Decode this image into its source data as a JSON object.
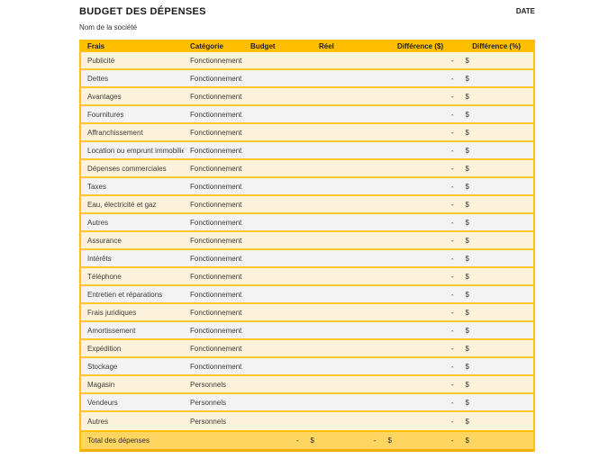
{
  "header": {
    "title": "BUDGET DES DÉPENSES",
    "date_label": "DATE",
    "company_name": "Nom de la société"
  },
  "table": {
    "columns": {
      "frais": "Frais",
      "categorie": "Catégorie",
      "budget": "Budget",
      "reel": "Réel",
      "difference_dollar": "Différence ($)",
      "difference_percent": "Différence (%)"
    },
    "zero_display": {
      "dash": "-",
      "currency": "$"
    },
    "rows": [
      {
        "frais": "Publicité",
        "categorie": "Fonctionnement"
      },
      {
        "frais": "Dettes",
        "categorie": "Fonctionnement"
      },
      {
        "frais": "Avantages",
        "categorie": "Fonctionnement"
      },
      {
        "frais": "Fournitures",
        "categorie": "Fonctionnement"
      },
      {
        "frais": "Affranchissement",
        "categorie": "Fonctionnement"
      },
      {
        "frais": "Location ou emprunt immobilier",
        "categorie": "Fonctionnement"
      },
      {
        "frais": "Dépenses commerciales",
        "categorie": "Fonctionnement"
      },
      {
        "frais": "Taxes",
        "categorie": "Fonctionnement"
      },
      {
        "frais": "Eau, électricité et gaz",
        "categorie": "Fonctionnement"
      },
      {
        "frais": "Autres",
        "categorie": "Fonctionnement"
      },
      {
        "frais": "Assurance",
        "categorie": "Fonctionnement"
      },
      {
        "frais": "Intérêts",
        "categorie": "Fonctionnement"
      },
      {
        "frais": "Téléphone",
        "categorie": "Fonctionnement"
      },
      {
        "frais": "Entretien et réparations",
        "categorie": "Fonctionnement"
      },
      {
        "frais": "Frais juridiques",
        "categorie": "Fonctionnement"
      },
      {
        "frais": "Amortissement",
        "categorie": "Fonctionnement"
      },
      {
        "frais": "Expédition",
        "categorie": "Fonctionnement"
      },
      {
        "frais": "Stockage",
        "categorie": "Fonctionnement"
      },
      {
        "frais": "Magasin",
        "categorie": "Personnels"
      },
      {
        "frais": "Vendeurs",
        "categorie": "Personnels"
      },
      {
        "frais": "Autres",
        "categorie": "Personnels"
      }
    ],
    "total": {
      "label": "Total des dépenses"
    }
  },
  "colors": {
    "header_bg": "#FFBF00",
    "row_cream": "#FCF2D9",
    "row_gray": "#F3F3F3",
    "row_separator": "#FFC72C",
    "total_bg": "#FFD561",
    "total_border": "#F7AC00",
    "table_border": "#FFC100",
    "title_text": "#1A1A1A",
    "body_text": "#3D3D3D"
  }
}
